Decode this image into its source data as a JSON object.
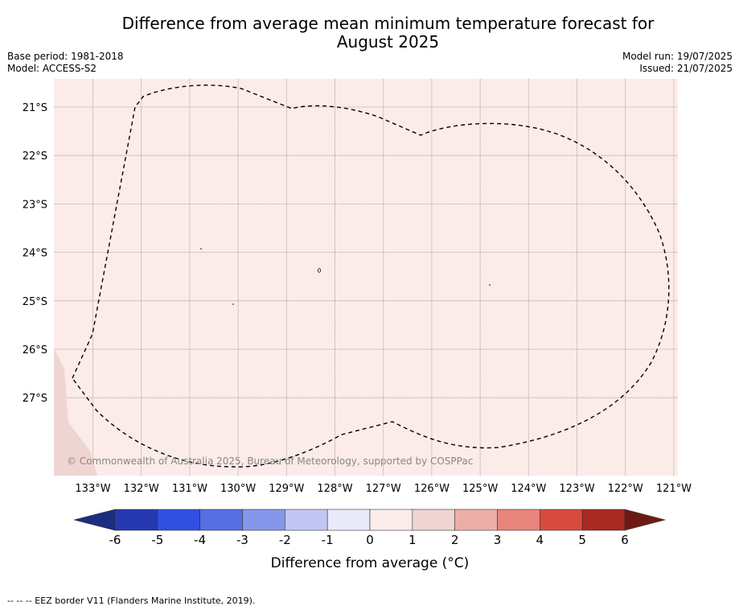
{
  "title": {
    "line1": "Difference from average mean minimum temperature forecast for",
    "line2": "August 2025"
  },
  "meta_left": {
    "base_period": "Base period: 1981-2018",
    "model": "Model: ACCESS-S2"
  },
  "meta_right": {
    "model_run": "Model run: 19/07/2025",
    "issued": "Issued: 21/07/2025"
  },
  "map": {
    "background_color": "#fbecea",
    "land_color": "#efd5d2",
    "eez_color": "#000000",
    "grid_color": "#9a8a8e",
    "copyright": "© Commonwealth of Australia 2025, Bureau of Meteorology, supported by COSPPac",
    "lat_labels": [
      "21°S",
      "22°S",
      "23°S",
      "24°S",
      "25°S",
      "26°S",
      "27°S"
    ],
    "lon_labels": [
      "133°W",
      "132°W",
      "131°W",
      "130°W",
      "129°W",
      "128°W",
      "127°W",
      "126°W",
      "125°W",
      "124°W",
      "123°W",
      "122°W",
      "121°W"
    ]
  },
  "colorbar": {
    "tick_labels": [
      "-6",
      "-5",
      "-4",
      "-3",
      "-2",
      "-1",
      "0",
      "1",
      "2",
      "3",
      "4",
      "5",
      "6"
    ],
    "below_color": "#1b2d82",
    "above_color": "#6e1a14",
    "bin_colors": [
      "#2539b1",
      "#2f50e0",
      "#566fe3",
      "#8597eb",
      "#c1c7f3",
      "#e8eafb",
      "#fbecea",
      "#efd5d2",
      "#edaea8",
      "#e8857d",
      "#d94a3e",
      "#a92a22"
    ],
    "label": "Difference from average (°C)"
  },
  "footer": {
    "legend_text": "--  --  -- EEZ border V11 (Flanders Marine Institute, 2019)."
  }
}
